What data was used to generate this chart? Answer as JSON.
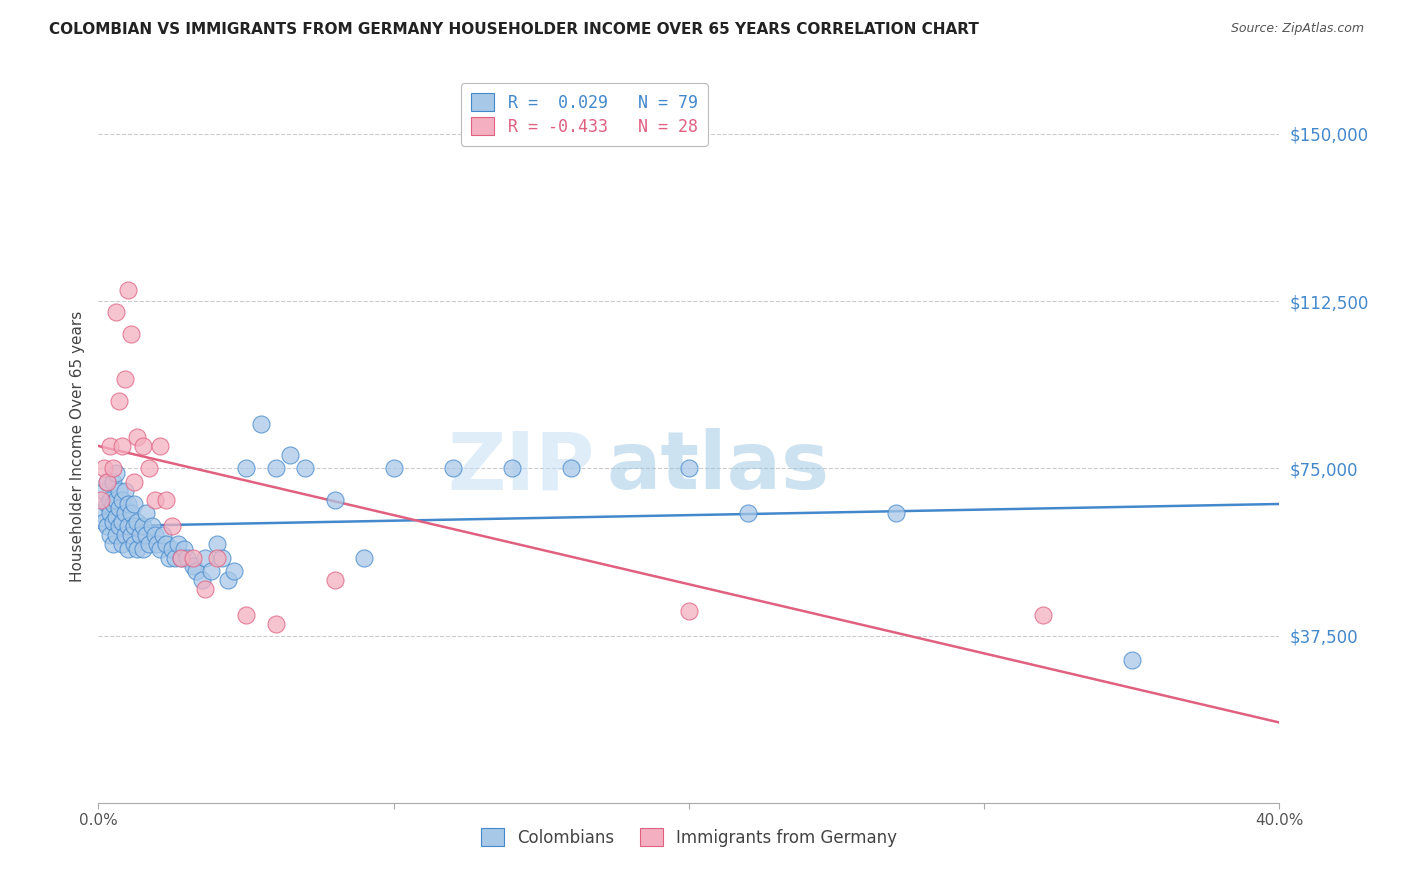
{
  "title": "COLOMBIAN VS IMMIGRANTS FROM GERMANY HOUSEHOLDER INCOME OVER 65 YEARS CORRELATION CHART",
  "source": "Source: ZipAtlas.com",
  "ylabel": "Householder Income Over 65 years",
  "xlim": [
    0.0,
    0.4
  ],
  "ylim": [
    0,
    160000
  ],
  "yticks": [
    0,
    37500,
    75000,
    112500,
    150000
  ],
  "ytick_labels": [
    "",
    "$37,500",
    "$75,000",
    "$112,500",
    "$150,000"
  ],
  "xticks": [
    0.0,
    0.1,
    0.2,
    0.3,
    0.4
  ],
  "xtick_labels": [
    "0.0%",
    "",
    "",
    "",
    "40.0%"
  ],
  "legend_entry1": "R =  0.029   N = 79",
  "legend_entry2": "R = -0.433   N = 28",
  "legend_label1": "Colombians",
  "legend_label2": "Immigrants from Germany",
  "color_blue": "#a8c8e8",
  "color_pink": "#f4b0c0",
  "line_color_blue": "#4488cc",
  "line_color_pink": "#e06080",
  "watermark_zip": "ZIP",
  "watermark_atlas": "atlas",
  "blue_line_x0": 0.0,
  "blue_line_y0": 62000,
  "blue_line_x1": 0.4,
  "blue_line_y1": 67000,
  "pink_line_x0": 0.0,
  "pink_line_y0": 80000,
  "pink_line_x1": 0.4,
  "pink_line_y1": 18000,
  "colombians_x": [
    0.001,
    0.002,
    0.002,
    0.003,
    0.003,
    0.003,
    0.004,
    0.004,
    0.004,
    0.005,
    0.005,
    0.005,
    0.005,
    0.006,
    0.006,
    0.006,
    0.006,
    0.007,
    0.007,
    0.007,
    0.008,
    0.008,
    0.008,
    0.009,
    0.009,
    0.009,
    0.01,
    0.01,
    0.01,
    0.011,
    0.011,
    0.012,
    0.012,
    0.012,
    0.013,
    0.013,
    0.014,
    0.015,
    0.015,
    0.016,
    0.016,
    0.017,
    0.018,
    0.019,
    0.02,
    0.021,
    0.022,
    0.023,
    0.024,
    0.025,
    0.026,
    0.027,
    0.028,
    0.029,
    0.03,
    0.032,
    0.033,
    0.035,
    0.036,
    0.038,
    0.04,
    0.042,
    0.044,
    0.046,
    0.05,
    0.055,
    0.06,
    0.065,
    0.07,
    0.08,
    0.09,
    0.1,
    0.12,
    0.14,
    0.16,
    0.2,
    0.22,
    0.27,
    0.35
  ],
  "colombians_y": [
    65000,
    63000,
    70000,
    62000,
    67000,
    72000,
    60000,
    65000,
    68000,
    58000,
    63000,
    67000,
    72000,
    60000,
    64000,
    68000,
    74000,
    62000,
    66000,
    70000,
    58000,
    63000,
    68000,
    60000,
    65000,
    70000,
    57000,
    62000,
    67000,
    60000,
    65000,
    58000,
    62000,
    67000,
    57000,
    63000,
    60000,
    62000,
    57000,
    60000,
    65000,
    58000,
    62000,
    60000,
    58000,
    57000,
    60000,
    58000,
    55000,
    57000,
    55000,
    58000,
    55000,
    57000,
    55000,
    53000,
    52000,
    50000,
    55000,
    52000,
    58000,
    55000,
    50000,
    52000,
    75000,
    85000,
    75000,
    78000,
    75000,
    68000,
    55000,
    75000,
    75000,
    75000,
    75000,
    75000,
    65000,
    65000,
    32000
  ],
  "germany_x": [
    0.001,
    0.002,
    0.003,
    0.004,
    0.005,
    0.006,
    0.007,
    0.008,
    0.009,
    0.01,
    0.011,
    0.012,
    0.013,
    0.015,
    0.017,
    0.019,
    0.021,
    0.023,
    0.025,
    0.028,
    0.032,
    0.036,
    0.04,
    0.05,
    0.06,
    0.08,
    0.2,
    0.32
  ],
  "germany_y": [
    68000,
    75000,
    72000,
    80000,
    75000,
    110000,
    90000,
    80000,
    95000,
    115000,
    105000,
    72000,
    82000,
    80000,
    75000,
    68000,
    80000,
    68000,
    62000,
    55000,
    55000,
    48000,
    55000,
    42000,
    40000,
    50000,
    43000,
    42000
  ]
}
